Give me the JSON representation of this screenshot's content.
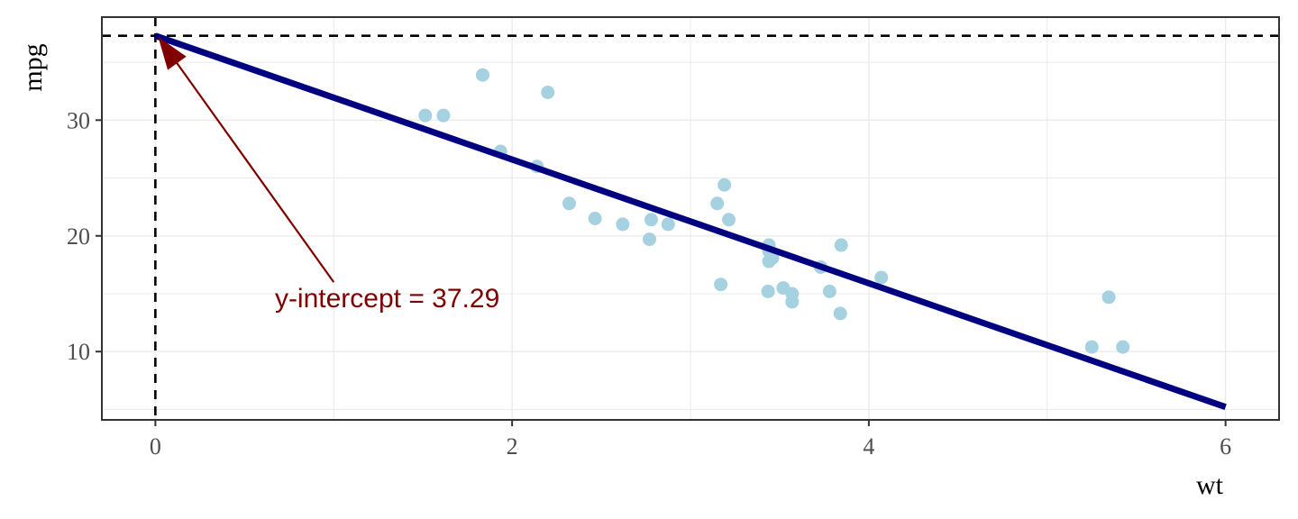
{
  "chart_data": {
    "type": "scatter",
    "title": "",
    "xlabel": "wt",
    "ylabel": "mpg",
    "xlim": [
      -0.3,
      6.3
    ],
    "ylim": [
      4.1,
      38.9
    ],
    "x_ticks": [
      0,
      2,
      4,
      6
    ],
    "y_ticks": [
      10,
      20,
      30
    ],
    "x_tick_labels": [
      "0",
      "2",
      "4",
      "6"
    ],
    "y_tick_labels": [
      "10",
      "20",
      "30"
    ],
    "grid": true,
    "legend": "none",
    "point_color": "#a6d1e0",
    "points": [
      {
        "x": 2.62,
        "y": 21.0
      },
      {
        "x": 2.875,
        "y": 21.0
      },
      {
        "x": 2.32,
        "y": 22.8
      },
      {
        "x": 3.215,
        "y": 21.4
      },
      {
        "x": 3.44,
        "y": 18.7
      },
      {
        "x": 3.46,
        "y": 18.1
      },
      {
        "x": 3.57,
        "y": 14.3
      },
      {
        "x": 3.19,
        "y": 24.4
      },
      {
        "x": 3.15,
        "y": 22.8
      },
      {
        "x": 3.44,
        "y": 19.2
      },
      {
        "x": 3.44,
        "y": 17.8
      },
      {
        "x": 4.07,
        "y": 16.4
      },
      {
        "x": 3.73,
        "y": 17.3
      },
      {
        "x": 3.78,
        "y": 15.2
      },
      {
        "x": 5.25,
        "y": 10.4
      },
      {
        "x": 5.424,
        "y": 10.4
      },
      {
        "x": 5.345,
        "y": 14.7
      },
      {
        "x": 2.2,
        "y": 32.4
      },
      {
        "x": 1.615,
        "y": 30.4
      },
      {
        "x": 1.835,
        "y": 33.9
      },
      {
        "x": 2.465,
        "y": 21.5
      },
      {
        "x": 3.52,
        "y": 15.5
      },
      {
        "x": 3.435,
        "y": 15.2
      },
      {
        "x": 3.84,
        "y": 13.3
      },
      {
        "x": 3.845,
        "y": 19.2
      },
      {
        "x": 1.935,
        "y": 27.3
      },
      {
        "x": 2.14,
        "y": 26.0
      },
      {
        "x": 1.513,
        "y": 30.4
      },
      {
        "x": 3.17,
        "y": 15.8
      },
      {
        "x": 2.77,
        "y": 19.7
      },
      {
        "x": 3.57,
        "y": 15.0
      },
      {
        "x": 2.78,
        "y": 21.4
      }
    ],
    "regression_line": {
      "x": [
        0,
        6
      ],
      "y": [
        37.29,
        5.21
      ],
      "color": "#000080"
    },
    "reference_lines": {
      "hline_y": 37.29,
      "vline_x": 0,
      "style": "dashed",
      "color": "#000000"
    },
    "annotation": {
      "text": "y-intercept = 37.29",
      "text_x": 1.3,
      "text_y": 14.6,
      "arrow_from": [
        1.0,
        16.0
      ],
      "arrow_to": [
        0.02,
        37.1
      ],
      "color": "#800000"
    }
  }
}
